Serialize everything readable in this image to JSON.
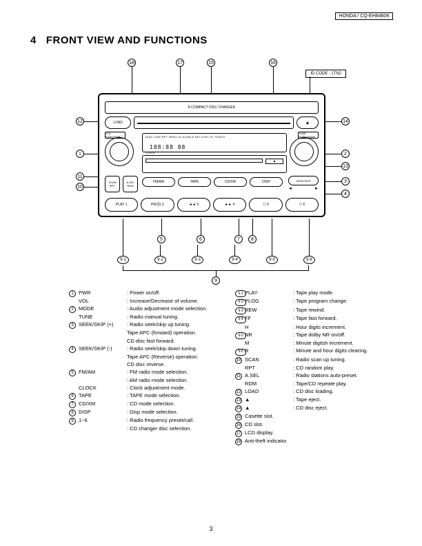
{
  "header": {
    "model": "HONDA / CQ-EH8460K"
  },
  "section": {
    "number": "4",
    "title": "FRONT VIEW AND FUNCTIONS"
  },
  "diagram": {
    "id_code": "ID CODE : 1TN2",
    "top_strip": "8-COMPACT DISC CHANGER",
    "load": "LOAD",
    "vol_label": "VOL PUSH:PWR",
    "tune_label": "TUNE PUSH:MODE",
    "lcd_line1": "DISC CDM RPT RDM LDI SCAN A.SEL DISC ST TRACK",
    "lcd_digits": "188:88 88",
    "clock": "CLOCK",
    "scan": {
      "l1": "SCAN",
      "l2": "RPT"
    },
    "asel": {
      "l1": "A.SEL",
      "l2": "RDM"
    },
    "modes": [
      "FM/AM",
      "TAPE",
      "CD/XM",
      "DISP"
    ],
    "seek": "SEEK/SKIP",
    "presets": [
      "PLAY 1",
      "PROG 2",
      "◄◄ 3",
      "►► 4",
      "☐ 5",
      "☐ 6"
    ],
    "eject_up": "▲",
    "eject_cass": "▲",
    "callouts_top": [
      "18",
      "17",
      "15",
      "16"
    ],
    "callouts_left": [
      "12",
      "1",
      "11",
      "10"
    ],
    "callouts_right": [
      "14",
      "2",
      "13",
      "3",
      "4"
    ],
    "callouts_bottom": [
      "5",
      "6",
      "7",
      "8"
    ],
    "callouts_presets": [
      "9-1",
      "9-2",
      "9-3",
      "9-4",
      "9-5",
      "9-6"
    ],
    "callout_9": "9"
  },
  "legend": {
    "left": [
      {
        "n": "1",
        "label": "PWR",
        "desc": ": Power on/off."
      },
      {
        "n": "",
        "label": "VOL",
        "desc": ": Increase/Decrease of volume."
      },
      {
        "n": "2",
        "label": "MODE",
        "desc": ": Audio adjustment mode selection."
      },
      {
        "n": "",
        "label": "TUNE",
        "desc": ": Radio manual tuning."
      },
      {
        "n": "3",
        "label": "SEEK/SKIP (+)",
        "desc": ": Radio seek/skip up tuning."
      },
      {
        "n": "",
        "label": "",
        "desc": "  Tape APC (forward) operation."
      },
      {
        "n": "",
        "label": "",
        "desc": "  CD disc fast forward."
      },
      {
        "n": "4",
        "label": "SEEK/SKIP (-)",
        "desc": ": Radio seek/skip down tuning."
      },
      {
        "n": "",
        "label": "",
        "desc": "  Tape APC (Reverse) operation."
      },
      {
        "n": "",
        "label": "",
        "desc": "  CD disc reverse."
      },
      {
        "n": "5",
        "label": "FM/AM",
        "desc": ": FM radio mode selection."
      },
      {
        "n": "",
        "label": "",
        "desc": ": AM radio mode selection."
      },
      {
        "n": "",
        "label": "CLOCK",
        "desc": ": Clock adjustment mode."
      },
      {
        "n": "6",
        "label": "TAPE",
        "desc": ": TAPE mode selection."
      },
      {
        "n": "7",
        "label": "CD/XM",
        "desc": ": CD mode selection."
      },
      {
        "n": "8",
        "label": "DISP",
        "desc": ": Disp mode selection."
      },
      {
        "n": "9",
        "label": "1~6",
        "desc": ": Radio frequency preset/call."
      },
      {
        "n": "",
        "label": "",
        "desc": ": CD changer disc selection."
      }
    ],
    "right": [
      {
        "n": "9-1",
        "label": "PLAY",
        "desc": ": Tape play mode."
      },
      {
        "n": "9-2",
        "label": "PLOG",
        "desc": ": Tape program change."
      },
      {
        "n": "9-3",
        "label": "REW",
        "desc": ": Tape rewind."
      },
      {
        "n": "9-4",
        "label": "FF",
        "desc": ": Tape fast forward."
      },
      {
        "n": "",
        "label": "H",
        "desc": ": Hour digits increment."
      },
      {
        "n": "9-5",
        "label": "NR",
        "desc": ": Tape dolby NR on/off."
      },
      {
        "n": "",
        "label": "M",
        "desc": ": Minute digitsh increment."
      },
      {
        "n": "9-6",
        "label": "R",
        "desc": ": Minute and hour digits clearing."
      },
      {
        "n": "10",
        "label": "SCAN",
        "desc": ": Radio scan up tuning."
      },
      {
        "n": "",
        "label": "RPT",
        "desc": ": CD random play."
      },
      {
        "n": "11",
        "label": "A.SEL",
        "desc": ": Radio stations auto-preset."
      },
      {
        "n": "",
        "label": "RDM",
        "desc": ": Tape/CD repeate play."
      },
      {
        "n": "12",
        "label": "LOAD",
        "desc": ": CD disc loading."
      },
      {
        "n": "13",
        "label": "▲",
        "desc": ": Tape eject."
      },
      {
        "n": "14",
        "label": "▲",
        "desc": ": CD disc eject."
      },
      {
        "n": "15",
        "label": "Casette slot.",
        "desc": ""
      },
      {
        "n": "16",
        "label": "CD slot.",
        "desc": ""
      },
      {
        "n": "17",
        "label": "LCD display.",
        "desc": ""
      },
      {
        "n": "18",
        "label": "Anti-theft indicator.",
        "desc": ""
      }
    ]
  },
  "page": "3"
}
